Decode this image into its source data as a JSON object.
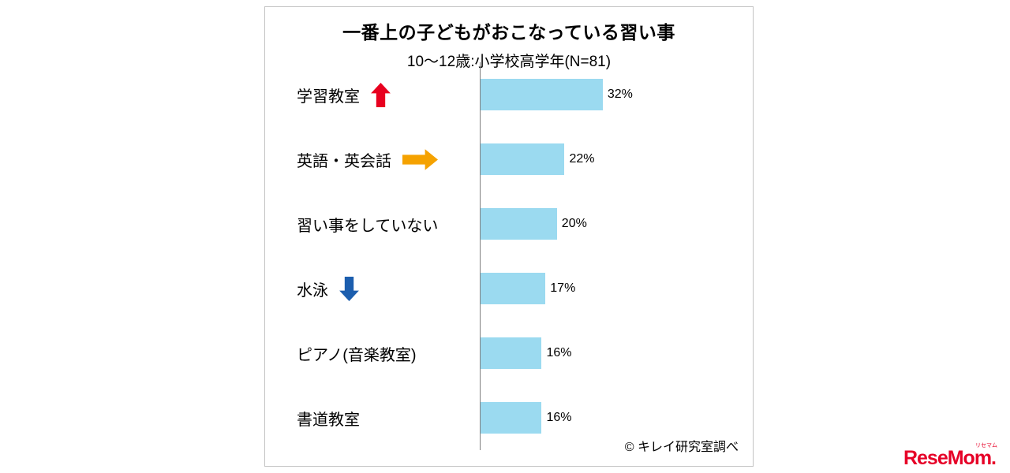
{
  "page": {
    "source_note": "© キレイ研究室調べ",
    "logo": {
      "text": "ReseMom",
      "dot": ".",
      "ruby": "リセマム",
      "color": "#e60027"
    }
  },
  "chart_data": {
    "type": "bar",
    "orientation": "horizontal",
    "title": "一番上の子どもがおこなっている習い事",
    "subtitle": "10〜12歳:小学校高学年(N=81)",
    "unit": "%",
    "categories": [
      "学習教室",
      "英語・英会話",
      "習い事をしていない",
      "水泳",
      "ピアノ(音楽教室)",
      "書道教室"
    ],
    "values": [
      32,
      22,
      20,
      17,
      16,
      16
    ],
    "value_labels": [
      "32%",
      "22%",
      "20%",
      "17%",
      "16%",
      "16%"
    ],
    "trend_arrows": [
      "up",
      "right",
      null,
      "down",
      null,
      null
    ],
    "xlim": [
      0,
      35
    ],
    "grid": false,
    "legend": "none",
    "bar_color": "#9bdaf0",
    "axis_color": "#7f7f7f",
    "arrow_colors": {
      "up": "#e8001f",
      "right": "#f5a200",
      "down": "#1c5eae"
    }
  }
}
